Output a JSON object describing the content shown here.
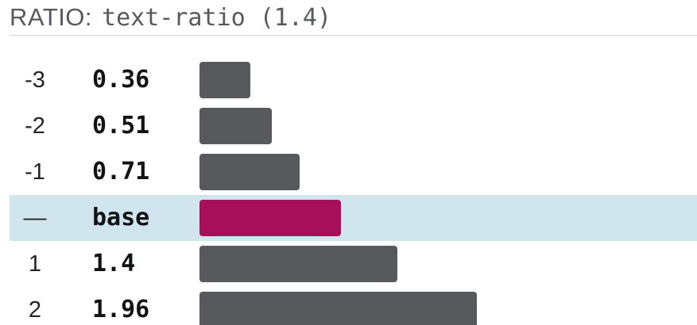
{
  "header": {
    "label": "RATIO:",
    "code": "text-ratio (1.4)"
  },
  "colors": {
    "bar": "#57595d",
    "base_bar": "#a80f5a",
    "base_row_highlight": "#d0e5ed"
  },
  "scale": [
    {
      "step": "-3",
      "value_label": "0.36",
      "ratio": 0.36
    },
    {
      "step": "-2",
      "value_label": "0.51",
      "ratio": 0.51
    },
    {
      "step": "-1",
      "value_label": "0.71",
      "ratio": 0.71
    },
    {
      "step": "—",
      "value_label": "base",
      "ratio": 1,
      "base": true
    },
    {
      "step": "1",
      "value_label": "1.4",
      "ratio": 1.4
    },
    {
      "step": "2",
      "value_label": "1.96",
      "ratio": 1.96
    }
  ]
}
